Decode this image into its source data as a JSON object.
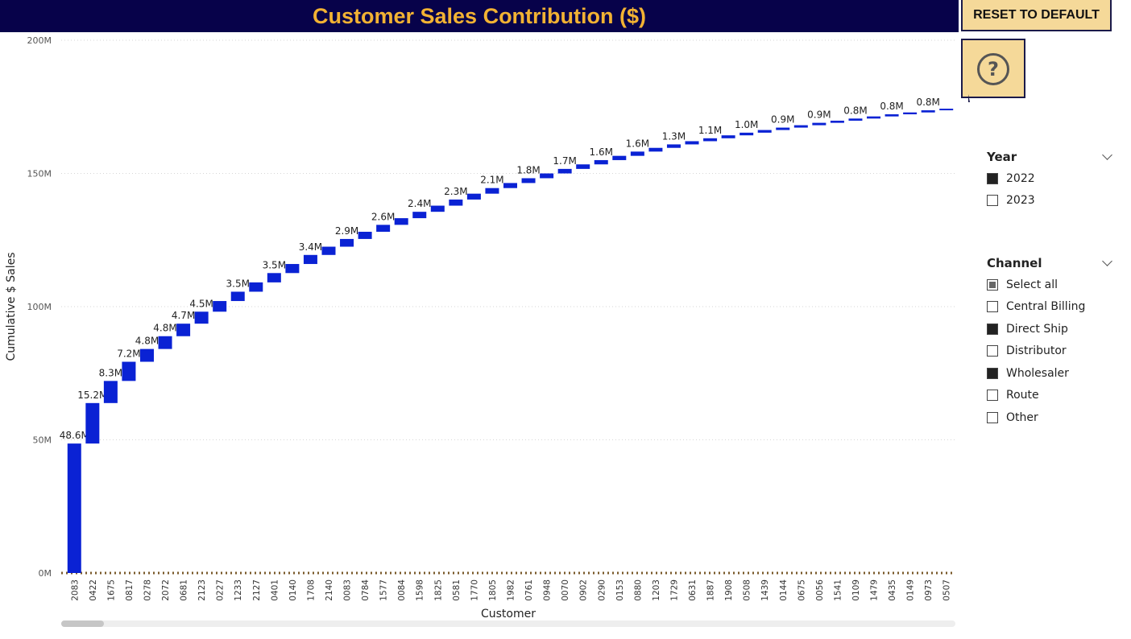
{
  "chart_data": {
    "type": "waterfall",
    "title": "Customer Sales Contribution ($)",
    "x_label": "Customer",
    "y_label": "Cumulative $ Sales",
    "categories": [
      "2083",
      "0422",
      "1675",
      "0817",
      "0278",
      "2072",
      "0681",
      "2123",
      "0227",
      "1233",
      "2127",
      "0401",
      "0140",
      "1708",
      "2140",
      "0083",
      "0784",
      "1577",
      "0084",
      "1598",
      "1825",
      "0581",
      "1770",
      "1805",
      "1982",
      "0761",
      "0948",
      "0070",
      "0902",
      "0290",
      "0153",
      "0880",
      "1203",
      "1729",
      "0631",
      "1887",
      "1908",
      "0508",
      "1439",
      "0144",
      "0675",
      "0056",
      "1541",
      "0109",
      "1479",
      "0435",
      "0149",
      "0973",
      "0507"
    ],
    "values": [
      48.6,
      15.2,
      8.3,
      7.2,
      4.8,
      4.8,
      4.7,
      4.5,
      4.0,
      3.5,
      3.5,
      3.5,
      3.4,
      3.4,
      3.1,
      2.9,
      2.7,
      2.6,
      2.5,
      2.4,
      2.3,
      2.3,
      2.2,
      2.1,
      1.9,
      1.8,
      1.8,
      1.7,
      1.7,
      1.6,
      1.6,
      1.6,
      1.4,
      1.3,
      1.2,
      1.1,
      1.1,
      1.0,
      1.0,
      0.9,
      0.9,
      0.9,
      0.8,
      0.8,
      0.8,
      0.8,
      0.7,
      0.8,
      0.6
    ],
    "value_labels": [
      "48.6M",
      "15.2M",
      "8.3M",
      "7.2M",
      "4.8M",
      "4.8M",
      "4.7M",
      "4.5M",
      null,
      "3.5M",
      null,
      "3.5M",
      null,
      "3.4M",
      null,
      "2.9M",
      null,
      "2.6M",
      null,
      "2.4M",
      null,
      "2.3M",
      null,
      "2.1M",
      null,
      "1.8M",
      null,
      "1.7M",
      null,
      "1.6M",
      null,
      "1.6M",
      null,
      "1.3M",
      null,
      "1.1M",
      null,
      "1.0M",
      null,
      "0.9M",
      null,
      "0.9M",
      null,
      "0.8M",
      null,
      "0.8M",
      null,
      "0.8M",
      null
    ],
    "color": "#0a22d4",
    "ylim": [
      0,
      200
    ],
    "yticks": [
      {
        "value": 0,
        "label": "0M"
      },
      {
        "value": 50,
        "label": "50M"
      },
      {
        "value": 100,
        "label": "100M"
      },
      {
        "value": 150,
        "label": "150M"
      },
      {
        "value": 200,
        "label": "200M"
      }
    ],
    "grid": true
  },
  "reset_button": "RESET TO DEFAULT",
  "help_icon": "?",
  "slicers": [
    {
      "title": "Year",
      "items": [
        {
          "label": "2022",
          "state": "checked"
        },
        {
          "label": "2023",
          "state": "unchecked"
        }
      ]
    },
    {
      "title": "Channel",
      "items": [
        {
          "label": "Select all",
          "state": "partial"
        },
        {
          "label": "Central Billing",
          "state": "unchecked"
        },
        {
          "label": "Direct Ship",
          "state": "checked"
        },
        {
          "label": "Distributor",
          "state": "unchecked"
        },
        {
          "label": "Wholesaler",
          "state": "checked"
        },
        {
          "label": "Route",
          "state": "unchecked"
        },
        {
          "label": "Other",
          "state": "unchecked"
        }
      ]
    }
  ]
}
